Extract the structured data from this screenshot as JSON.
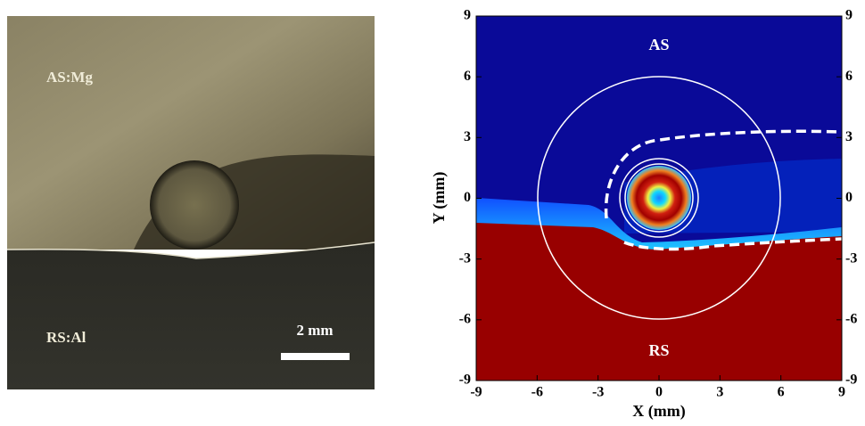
{
  "micrograph": {
    "top_label": "AS:Mg",
    "bottom_label": "RS:Al",
    "scale_label": "2 mm"
  },
  "chart_data": {
    "type": "contour",
    "xlabel": "X (mm)",
    "ylabel": "Y (mm)",
    "annotations": [
      "AS",
      "RS"
    ],
    "xlim": [
      -9,
      9
    ],
    "ylim": [
      -9,
      9
    ],
    "xticks": [
      -9,
      -6,
      -3,
      0,
      3,
      6,
      9
    ],
    "yticks": [
      -9,
      -6,
      -3,
      0,
      3,
      6,
      9
    ]
  }
}
